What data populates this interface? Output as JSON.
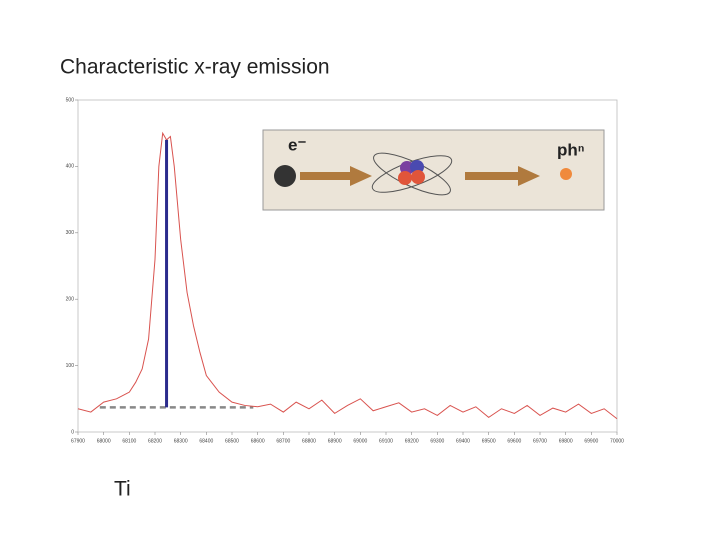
{
  "chart_data": {
    "type": "line",
    "title": "Characteristic x-ray emission",
    "annotation": "Ti",
    "x": [
      67900,
      67950,
      68000,
      68050,
      68100,
      68125,
      68150,
      68175,
      68200,
      68215,
      68230,
      68245,
      68260,
      68275,
      68300,
      68325,
      68350,
      68375,
      68400,
      68450,
      68500,
      68550,
      68600,
      68650,
      68700,
      68750,
      68800,
      68850,
      68900,
      68950,
      69000,
      69050,
      69100,
      69150,
      69200,
      69250,
      69300,
      69350,
      69400,
      69450,
      69500,
      69550,
      69600,
      69650,
      69700,
      69750,
      69800,
      69850,
      69900,
      69950,
      70000
    ],
    "values": [
      35,
      30,
      45,
      50,
      60,
      75,
      95,
      140,
      260,
      400,
      450,
      440,
      445,
      400,
      290,
      210,
      160,
      120,
      85,
      60,
      45,
      40,
      38,
      42,
      30,
      45,
      35,
      48,
      28,
      40,
      50,
      32,
      38,
      44,
      30,
      35,
      25,
      40,
      30,
      38,
      22,
      35,
      28,
      40,
      25,
      36,
      30,
      42,
      28,
      35,
      20
    ],
    "color": "#d9534f",
    "xlim": [
      67900,
      70000
    ],
    "ylim": [
      0,
      500
    ],
    "xticks": [
      67900,
      68000,
      68100,
      68200,
      68300,
      68400,
      68500,
      68600,
      68700,
      68800,
      68900,
      69000,
      69100,
      69200,
      69300,
      69400,
      69500,
      69600,
      69700,
      69800,
      69900,
      70000
    ],
    "yticks": [
      0,
      100,
      200,
      300,
      400,
      500
    ],
    "peak_line": {
      "x": 68245,
      "y": [
        37,
        440
      ],
      "color": "#2b2b8c"
    },
    "baseline": {
      "x": [
        67985,
        68583
      ],
      "y": 37,
      "color": "#888888"
    },
    "inset": {
      "electron_label": "e⁻",
      "photon_label": "phⁿ"
    }
  }
}
